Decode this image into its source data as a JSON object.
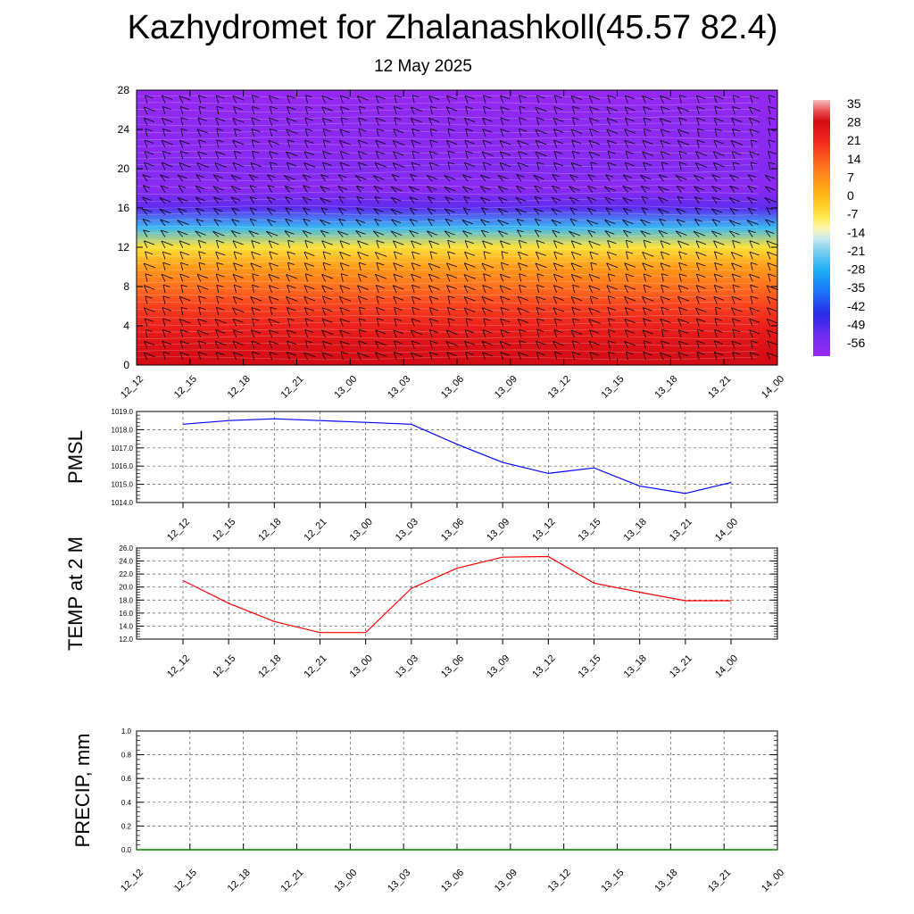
{
  "header": {
    "title": "Kazhydromet for Zhalanashkoll(45.57 82.4)",
    "subtitle": "12 May 2025"
  },
  "colors": {
    "pmsl_line": "#0000ff",
    "temp_line": "#ff0000",
    "precip_line": "#008000"
  },
  "chart_data": [
    {
      "type": "heatmap",
      "name": "vertical-temperature-wind",
      "x_tick_labels": [
        "12_12",
        "12_15",
        "12_18",
        "12_21",
        "13_00",
        "13_03",
        "13_06",
        "13_09",
        "13_12",
        "13_15",
        "13_18",
        "13_21",
        "14_00"
      ],
      "y_tick_labels": [
        "0",
        "4",
        "8",
        "12",
        "16",
        "20",
        "24",
        "28"
      ],
      "ylim": [
        0,
        28
      ],
      "colorbar_labels": [
        "35",
        "28",
        "21",
        "14",
        "7",
        "0",
        "-7",
        "-14",
        "-21",
        "-28",
        "-35",
        "-42",
        "-49",
        "-56"
      ],
      "colorbar_range": [
        -60,
        38
      ],
      "levels": [
        0,
        2,
        4,
        6,
        8,
        10,
        12,
        14,
        16,
        18,
        20,
        22,
        24,
        26,
        28
      ],
      "temperature_profile": [
        30,
        28,
        24,
        19,
        13,
        6,
        -5,
        -25,
        -50,
        -58,
        -56,
        -58,
        -58,
        -59,
        -60
      ],
      "wind_barbs": "shown"
    },
    {
      "type": "line",
      "name": "pmsl",
      "ylabel": "PMSL",
      "x_tick_labels": [
        "12_12",
        "12_15",
        "12_18",
        "12_21",
        "13_00",
        "13_03",
        "13_06",
        "13_09",
        "13_12",
        "13_15",
        "13_18",
        "13_21",
        "14_00"
      ],
      "y_tick_labels": [
        "1014.0",
        "1015.0",
        "1016.0",
        "1017.0",
        "1018.0",
        "1019.0"
      ],
      "ylim": [
        1014.0,
        1019.0
      ],
      "grid": true,
      "series": [
        {
          "values": [
            1018.3,
            1018.5,
            1018.6,
            1018.5,
            1018.4,
            1018.3,
            1017.2,
            1016.2,
            1015.6,
            1015.9,
            1014.9,
            1014.5,
            1015.1
          ]
        }
      ]
    },
    {
      "type": "line",
      "name": "temp2m",
      "ylabel": "TEMP at 2 M",
      "x_tick_labels": [
        "12_12",
        "12_15",
        "12_18",
        "12_21",
        "13_00",
        "13_03",
        "13_06",
        "13_09",
        "13_12",
        "13_15",
        "13_18",
        "13_21",
        "14_00"
      ],
      "y_tick_labels": [
        "12.0",
        "14.0",
        "16.0",
        "18.0",
        "20.0",
        "22.0",
        "24.0",
        "26.0"
      ],
      "ylim": [
        12.0,
        26.0
      ],
      "grid": true,
      "series": [
        {
          "values": [
            21.0,
            17.5,
            14.7,
            13.0,
            13.0,
            19.8,
            22.9,
            24.6,
            24.7,
            20.6,
            19.2,
            17.9,
            17.9
          ]
        }
      ]
    },
    {
      "type": "line",
      "name": "precip",
      "ylabel": "PRECIP, mm",
      "x_tick_labels": [
        "12_12",
        "12_15",
        "12_18",
        "12_21",
        "13_00",
        "13_03",
        "13_06",
        "13_09",
        "13_12",
        "13_15",
        "13_18",
        "13_21",
        "14_00"
      ],
      "y_tick_labels": [
        "0.0",
        "0.2",
        "0.4",
        "0.6",
        "0.8",
        "1.0"
      ],
      "ylim": [
        0.0,
        1.0
      ],
      "grid": true,
      "series": [
        {
          "values": [
            0,
            0,
            0,
            0,
            0,
            0,
            0,
            0,
            0,
            0,
            0,
            0,
            0
          ]
        }
      ]
    }
  ]
}
